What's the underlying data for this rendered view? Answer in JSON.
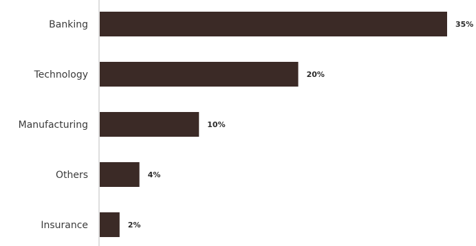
{
  "chart_data": {
    "type": "bar",
    "orientation": "horizontal",
    "categories": [
      "Banking",
      "Technology",
      "Manufacturing",
      "Others",
      "Insurance"
    ],
    "values": [
      35,
      20,
      10,
      4,
      2
    ],
    "value_labels": [
      "35%",
      "20%",
      "10%",
      "4%",
      "2%"
    ],
    "unit": "%",
    "title": "",
    "xlabel": "",
    "ylabel": "",
    "xlim": [
      0,
      35
    ],
    "grid": false,
    "legend": "none",
    "bar_color": "#3b2a26",
    "axis_color": "#bdbdbd"
  }
}
